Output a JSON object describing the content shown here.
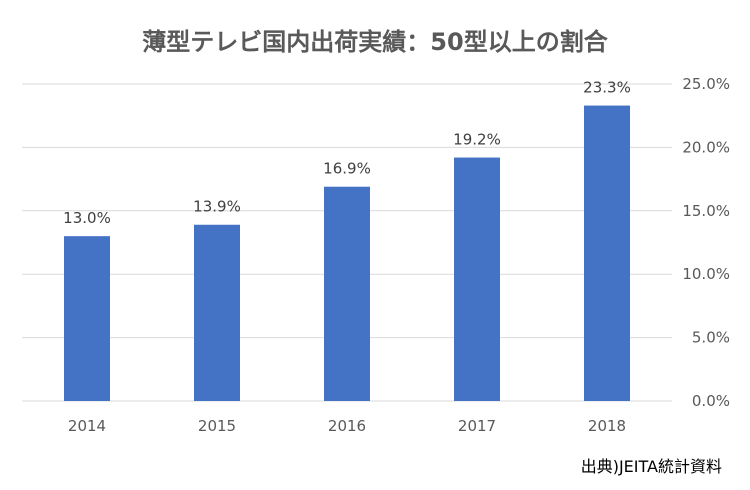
{
  "chart_data": {
    "type": "bar",
    "title": "薄型テレビ国内出荷実績：50型以上の割合",
    "categories": [
      "2014",
      "2015",
      "2016",
      "2017",
      "2018"
    ],
    "values": [
      13.0,
      13.9,
      16.9,
      19.2,
      23.3
    ],
    "data_labels": [
      "13.0%",
      "13.9%",
      "16.9%",
      "19.2%",
      "23.3%"
    ],
    "xlabel": "",
    "ylabel": "",
    "ylim": [
      0,
      25
    ],
    "y_ticks": [
      0,
      5,
      10,
      15,
      20,
      25
    ],
    "y_tick_labels": [
      "0.0%",
      "5.0%",
      "10.0%",
      "15.0%",
      "20.0%",
      "25.0%"
    ],
    "y_axis_position": "right",
    "grid": true,
    "legend": "none",
    "bar_color": "#4472C4",
    "grid_color": "#D9D9D9",
    "source": "出典)JEITA統計資料"
  }
}
